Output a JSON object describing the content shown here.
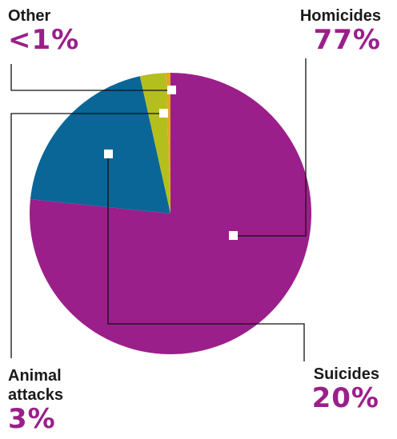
{
  "chart_data": {
    "type": "pie",
    "categories": [
      "Homicides",
      "Suicides",
      "Animal attacks",
      "Other"
    ],
    "values": [
      77,
      20,
      3,
      0.5
    ],
    "display_values": [
      "77%",
      "20%",
      "3%",
      "<1%"
    ],
    "colors": [
      "#9b1f8a",
      "#0a6696",
      "#b4bf1e",
      "#e6a51e"
    ],
    "label_color": "#9b1f8a",
    "legend_placement": "callouts"
  },
  "labels": {
    "homicides": {
      "name": "Homicides",
      "value": "77%"
    },
    "suicides": {
      "name": "Suicides",
      "value": "20%"
    },
    "animal": {
      "name_line1": "Animal",
      "name_line2": "attacks",
      "value": "3%"
    },
    "other": {
      "name": "Other",
      "value": "<1%"
    }
  }
}
